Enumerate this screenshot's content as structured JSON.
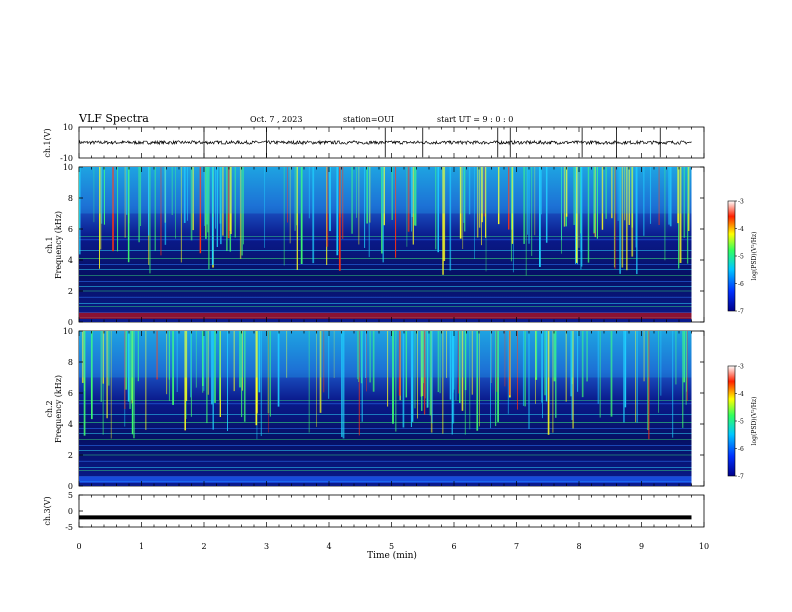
{
  "header": {
    "title": "VLF Spectra",
    "date": "Oct. 7 , 2023",
    "station": "station=OUI",
    "start_ut": "start UT =  9 : 0 : 0"
  },
  "colors": {
    "spectrogram_bg": "#0a1a8c",
    "colorbar_stops": [
      "#00008a",
      "#0030ff",
      "#00c8ff",
      "#30ff60",
      "#ffff00",
      "#ff2000",
      "#ffffff"
    ]
  },
  "chart_data": [
    {
      "type": "line",
      "name": "ch1-waveform",
      "ylabel": "ch.1(V)",
      "ylim": [
        -10,
        10
      ],
      "y_ticks": [
        "10",
        "-10"
      ],
      "x_range": [
        0,
        10
      ],
      "trace_end_min": 9.8,
      "baseline": 0,
      "spikes_min": [
        2.0,
        3.0,
        4.9,
        5.5,
        6.7,
        6.9,
        8.05,
        8.6,
        9.3
      ]
    },
    {
      "type": "heatmap",
      "name": "ch1-spectrogram",
      "ylabel": "ch.1\nFrequency (kHz)",
      "ylim": [
        0,
        10
      ],
      "y_ticks": [
        "10",
        "8",
        "6",
        "4",
        "2",
        "0"
      ],
      "x_range": [
        0,
        9.8
      ],
      "colorbar": {
        "label": "log(PSD)(V²/Hz)",
        "range": [
          -7,
          -3
        ],
        "ticks": [
          "-3",
          "-4",
          "-5",
          "-6",
          "-7"
        ]
      }
    },
    {
      "type": "heatmap",
      "name": "ch2-spectrogram",
      "ylabel": "ch.2\nFrequency (kHz)",
      "ylim": [
        0,
        10
      ],
      "y_ticks": [
        "10",
        "8",
        "6",
        "4",
        "2",
        "0"
      ],
      "x_range": [
        0,
        9.8
      ],
      "colorbar": {
        "label": "log(PSD)(V²/Hz)",
        "range": [
          -7,
          -3
        ],
        "ticks": [
          "-3",
          "-4",
          "-5",
          "-6",
          "-7"
        ]
      }
    },
    {
      "type": "line",
      "name": "ch3-waveform",
      "ylabel": "ch.3(V)",
      "ylim": [
        -5,
        5
      ],
      "y_ticks": [
        "5",
        "0",
        "-5"
      ],
      "x_range": [
        0,
        10
      ],
      "trace_end_min": 9.8,
      "level": -2
    }
  ],
  "x_axis": {
    "label": "Time (min)",
    "range": [
      0,
      10
    ],
    "ticks": [
      "0",
      "1",
      "2",
      "3",
      "4",
      "5",
      "6",
      "7",
      "8",
      "9",
      "10"
    ]
  }
}
